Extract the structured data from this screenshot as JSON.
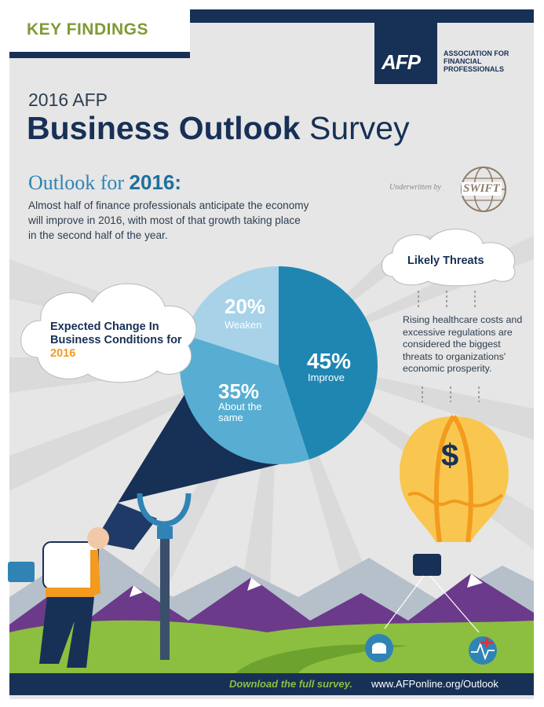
{
  "header": {
    "tag": "KEY FINDINGS",
    "logo_text": "AFP",
    "org_name": "ASSOCIATION FOR FINANCIAL PROFESSIONALS",
    "subtitle": "2016 AFP",
    "title_bold": "Business Outlook",
    "title_light": "Survey"
  },
  "intro": {
    "heading_prefix": "Outlook for",
    "heading_year": "2016:",
    "text": "Almost half of finance professionals anticipate the economy will improve in 2016, with most of that growth taking place in the second half of the year.",
    "underwritten_label": "Underwritten by",
    "sponsor_logo": "SWIFT"
  },
  "expected_cloud": {
    "label": "Expected Change In Business Conditions for",
    "year": "2016"
  },
  "threats": {
    "title": "Likely Threats",
    "text": "Rising healthcare costs and excessive regulations are considered the biggest threats to organizations' economic prosperity.",
    "balloon_symbol": "$"
  },
  "chart_data": {
    "type": "pie",
    "slices": [
      {
        "label": "Improve",
        "pct_label": "45%",
        "value": 45,
        "color": "#1f86b2"
      },
      {
        "label": "About the same",
        "pct_label": "35%",
        "value": 35,
        "color": "#57aed2"
      },
      {
        "label": "Weaken",
        "pct_label": "20%",
        "value": 20,
        "color": "#a7d2e8"
      }
    ]
  },
  "footer": {
    "cta": "Download the full survey.",
    "url": "www.AFPonline.org/Outlook"
  },
  "colors": {
    "navy": "#173056",
    "green": "#7f9a34",
    "orange": "#f39a1f",
    "blue": "#2f84b5"
  }
}
